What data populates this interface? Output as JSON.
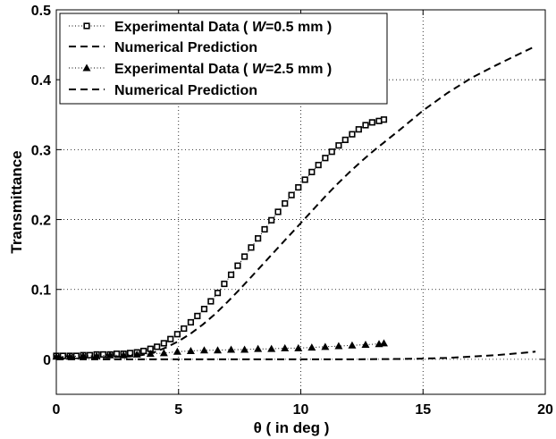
{
  "chart_data": {
    "type": "line",
    "xlabel": "θ ( in deg )",
    "ylabel": "Transmittance",
    "xlim": [
      0,
      20
    ],
    "ylim": [
      -0.05,
      0.5
    ],
    "xticks": [
      0,
      5,
      10,
      15,
      20
    ],
    "yticks": [
      0,
      0.1,
      0.2,
      0.3,
      0.4,
      0.5
    ],
    "grid": true,
    "legend_position": "top-left",
    "series": [
      {
        "name": "Experimental Data ( W=0.5 mm )",
        "legend": {
          "prefix": "Experimental Data ( ",
          "italic": "W",
          "suffix": "=0.5 mm )"
        },
        "style": "dotted-squares",
        "x": [
          0.0,
          0.27,
          0.55,
          0.82,
          1.1,
          1.37,
          1.65,
          1.92,
          2.2,
          2.47,
          2.75,
          3.02,
          3.3,
          3.57,
          3.85,
          4.12,
          4.4,
          4.67,
          4.95,
          5.22,
          5.5,
          5.77,
          6.05,
          6.32,
          6.6,
          6.87,
          7.15,
          7.42,
          7.7,
          7.97,
          8.25,
          8.52,
          8.8,
          9.07,
          9.35,
          9.62,
          9.9,
          10.17,
          10.45,
          10.72,
          11.0,
          11.27,
          11.55,
          11.82,
          12.1,
          12.37,
          12.65,
          12.92,
          13.2,
          13.4
        ],
        "y": [
          0.005,
          0.005,
          0.005,
          0.005,
          0.006,
          0.006,
          0.007,
          0.007,
          0.007,
          0.008,
          0.008,
          0.009,
          0.01,
          0.012,
          0.015,
          0.018,
          0.023,
          0.029,
          0.036,
          0.044,
          0.053,
          0.062,
          0.072,
          0.083,
          0.095,
          0.108,
          0.121,
          0.134,
          0.147,
          0.16,
          0.173,
          0.186,
          0.199,
          0.211,
          0.223,
          0.235,
          0.246,
          0.257,
          0.268,
          0.278,
          0.288,
          0.297,
          0.306,
          0.314,
          0.322,
          0.329,
          0.335,
          0.339,
          0.341,
          0.343
        ]
      },
      {
        "name": "Numerical Prediction",
        "style": "dashed",
        "x": [
          0,
          1,
          2,
          3,
          3.5,
          4,
          4.5,
          5,
          5.5,
          6,
          6.5,
          7,
          7.5,
          8,
          8.5,
          9,
          9.5,
          10,
          10.5,
          11,
          11.5,
          12,
          12.5,
          13,
          13.5,
          14,
          15,
          16,
          17,
          18,
          19,
          19.6
        ],
        "y": [
          0.003,
          0.003,
          0.003,
          0.004,
          0.006,
          0.01,
          0.017,
          0.026,
          0.037,
          0.05,
          0.065,
          0.082,
          0.1,
          0.119,
          0.138,
          0.157,
          0.176,
          0.195,
          0.214,
          0.233,
          0.251,
          0.268,
          0.284,
          0.299,
          0.313,
          0.327,
          0.356,
          0.381,
          0.403,
          0.421,
          0.438,
          0.448
        ]
      },
      {
        "name": "Experimental Data ( W=2.5 mm )",
        "legend": {
          "prefix": "Experimental Data ( ",
          "italic": "W",
          "suffix": "=2.5 mm )"
        },
        "style": "dotted-triangles",
        "x": [
          0.0,
          0.55,
          1.1,
          1.65,
          2.2,
          2.75,
          3.3,
          3.85,
          4.4,
          4.95,
          5.5,
          6.05,
          6.6,
          7.15,
          7.7,
          8.25,
          8.8,
          9.35,
          9.9,
          10.45,
          11.0,
          11.55,
          12.1,
          12.65,
          13.2,
          13.4
        ],
        "y": [
          0.004,
          0.004,
          0.005,
          0.005,
          0.006,
          0.006,
          0.007,
          0.008,
          0.009,
          0.011,
          0.012,
          0.013,
          0.013,
          0.014,
          0.014,
          0.015,
          0.015,
          0.016,
          0.016,
          0.017,
          0.018,
          0.019,
          0.02,
          0.021,
          0.022,
          0.023
        ]
      },
      {
        "name": "Numerical Prediction",
        "style": "dashed",
        "x": [
          0,
          2,
          4,
          6,
          8,
          10,
          12,
          14,
          15,
          16,
          17,
          18,
          19,
          19.6
        ],
        "y": [
          0.0,
          0.0,
          0.0,
          0.0,
          0.0,
          0.0,
          0.0,
          0.0005,
          0.001,
          0.002,
          0.004,
          0.006,
          0.009,
          0.011
        ]
      }
    ]
  }
}
